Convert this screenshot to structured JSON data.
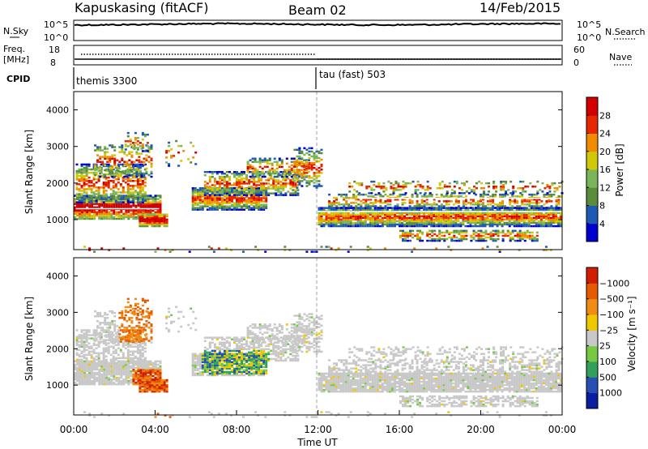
{
  "header": {
    "station": "Kapuskasing (fitACF)",
    "beam": "Beam 02",
    "date": "14/Feb/2015"
  },
  "panels": {
    "nsky": {
      "label": "N.Sky",
      "tick_top": "10^5",
      "tick_bottom": "10^0",
      "right_label": "N.Search",
      "right_tick_top": "10^5",
      "right_tick_bottom": "10^0"
    },
    "freq": {
      "label": "Freq.",
      "unit": "[MHz]",
      "tick_top": "18",
      "tick_bottom": "8",
      "right_label": "Nave",
      "right_tick_top": "60",
      "right_tick_bottom": "0"
    },
    "cpid": {
      "label": "CPID",
      "modes": [
        {
          "name": "themis 3300"
        },
        {
          "name": "tau (fast) 503"
        }
      ]
    }
  },
  "chart_data": [
    {
      "type": "heatmap",
      "name": "power",
      "xlabel": "",
      "ylabel": "Slant Range [km]",
      "xlim": [
        0,
        24
      ],
      "ylim": [
        180,
        4500
      ],
      "yticks": [
        1000,
        2000,
        3000,
        4000
      ],
      "colorbar": {
        "label": "Power [dB]",
        "ticks": [
          "4",
          "8",
          "12",
          "16",
          "20",
          "24",
          "28"
        ],
        "colors": [
          "#0000cc",
          "#1e5ab4",
          "#5a8c3c",
          "#7ab55a",
          "#d2c80a",
          "#f08c00",
          "#e62800",
          "#d20000"
        ]
      }
    },
    {
      "type": "heatmap",
      "name": "velocity",
      "xlabel": "Time UT",
      "ylabel": "Slant Range [km]",
      "xlim": [
        0,
        24
      ],
      "ylim": [
        180,
        4500
      ],
      "yticks": [
        1000,
        2000,
        3000,
        4000
      ],
      "xticks": [
        "00:00",
        "04:00",
        "08:00",
        "12:00",
        "16:00",
        "20:00",
        "00:00"
      ],
      "colorbar": {
        "label": "Velocity [m s⁻¹]",
        "ticks": [
          "1000",
          "500",
          "100",
          "25",
          "−25",
          "−100",
          "−500",
          "−1000"
        ],
        "colors": [
          "#0a1ea0",
          "#2850b4",
          "#32a05a",
          "#78c846",
          "#c8c8c8",
          "#f0c800",
          "#f08c14",
          "#e65a00",
          "#d21e00"
        ]
      }
    }
  ]
}
